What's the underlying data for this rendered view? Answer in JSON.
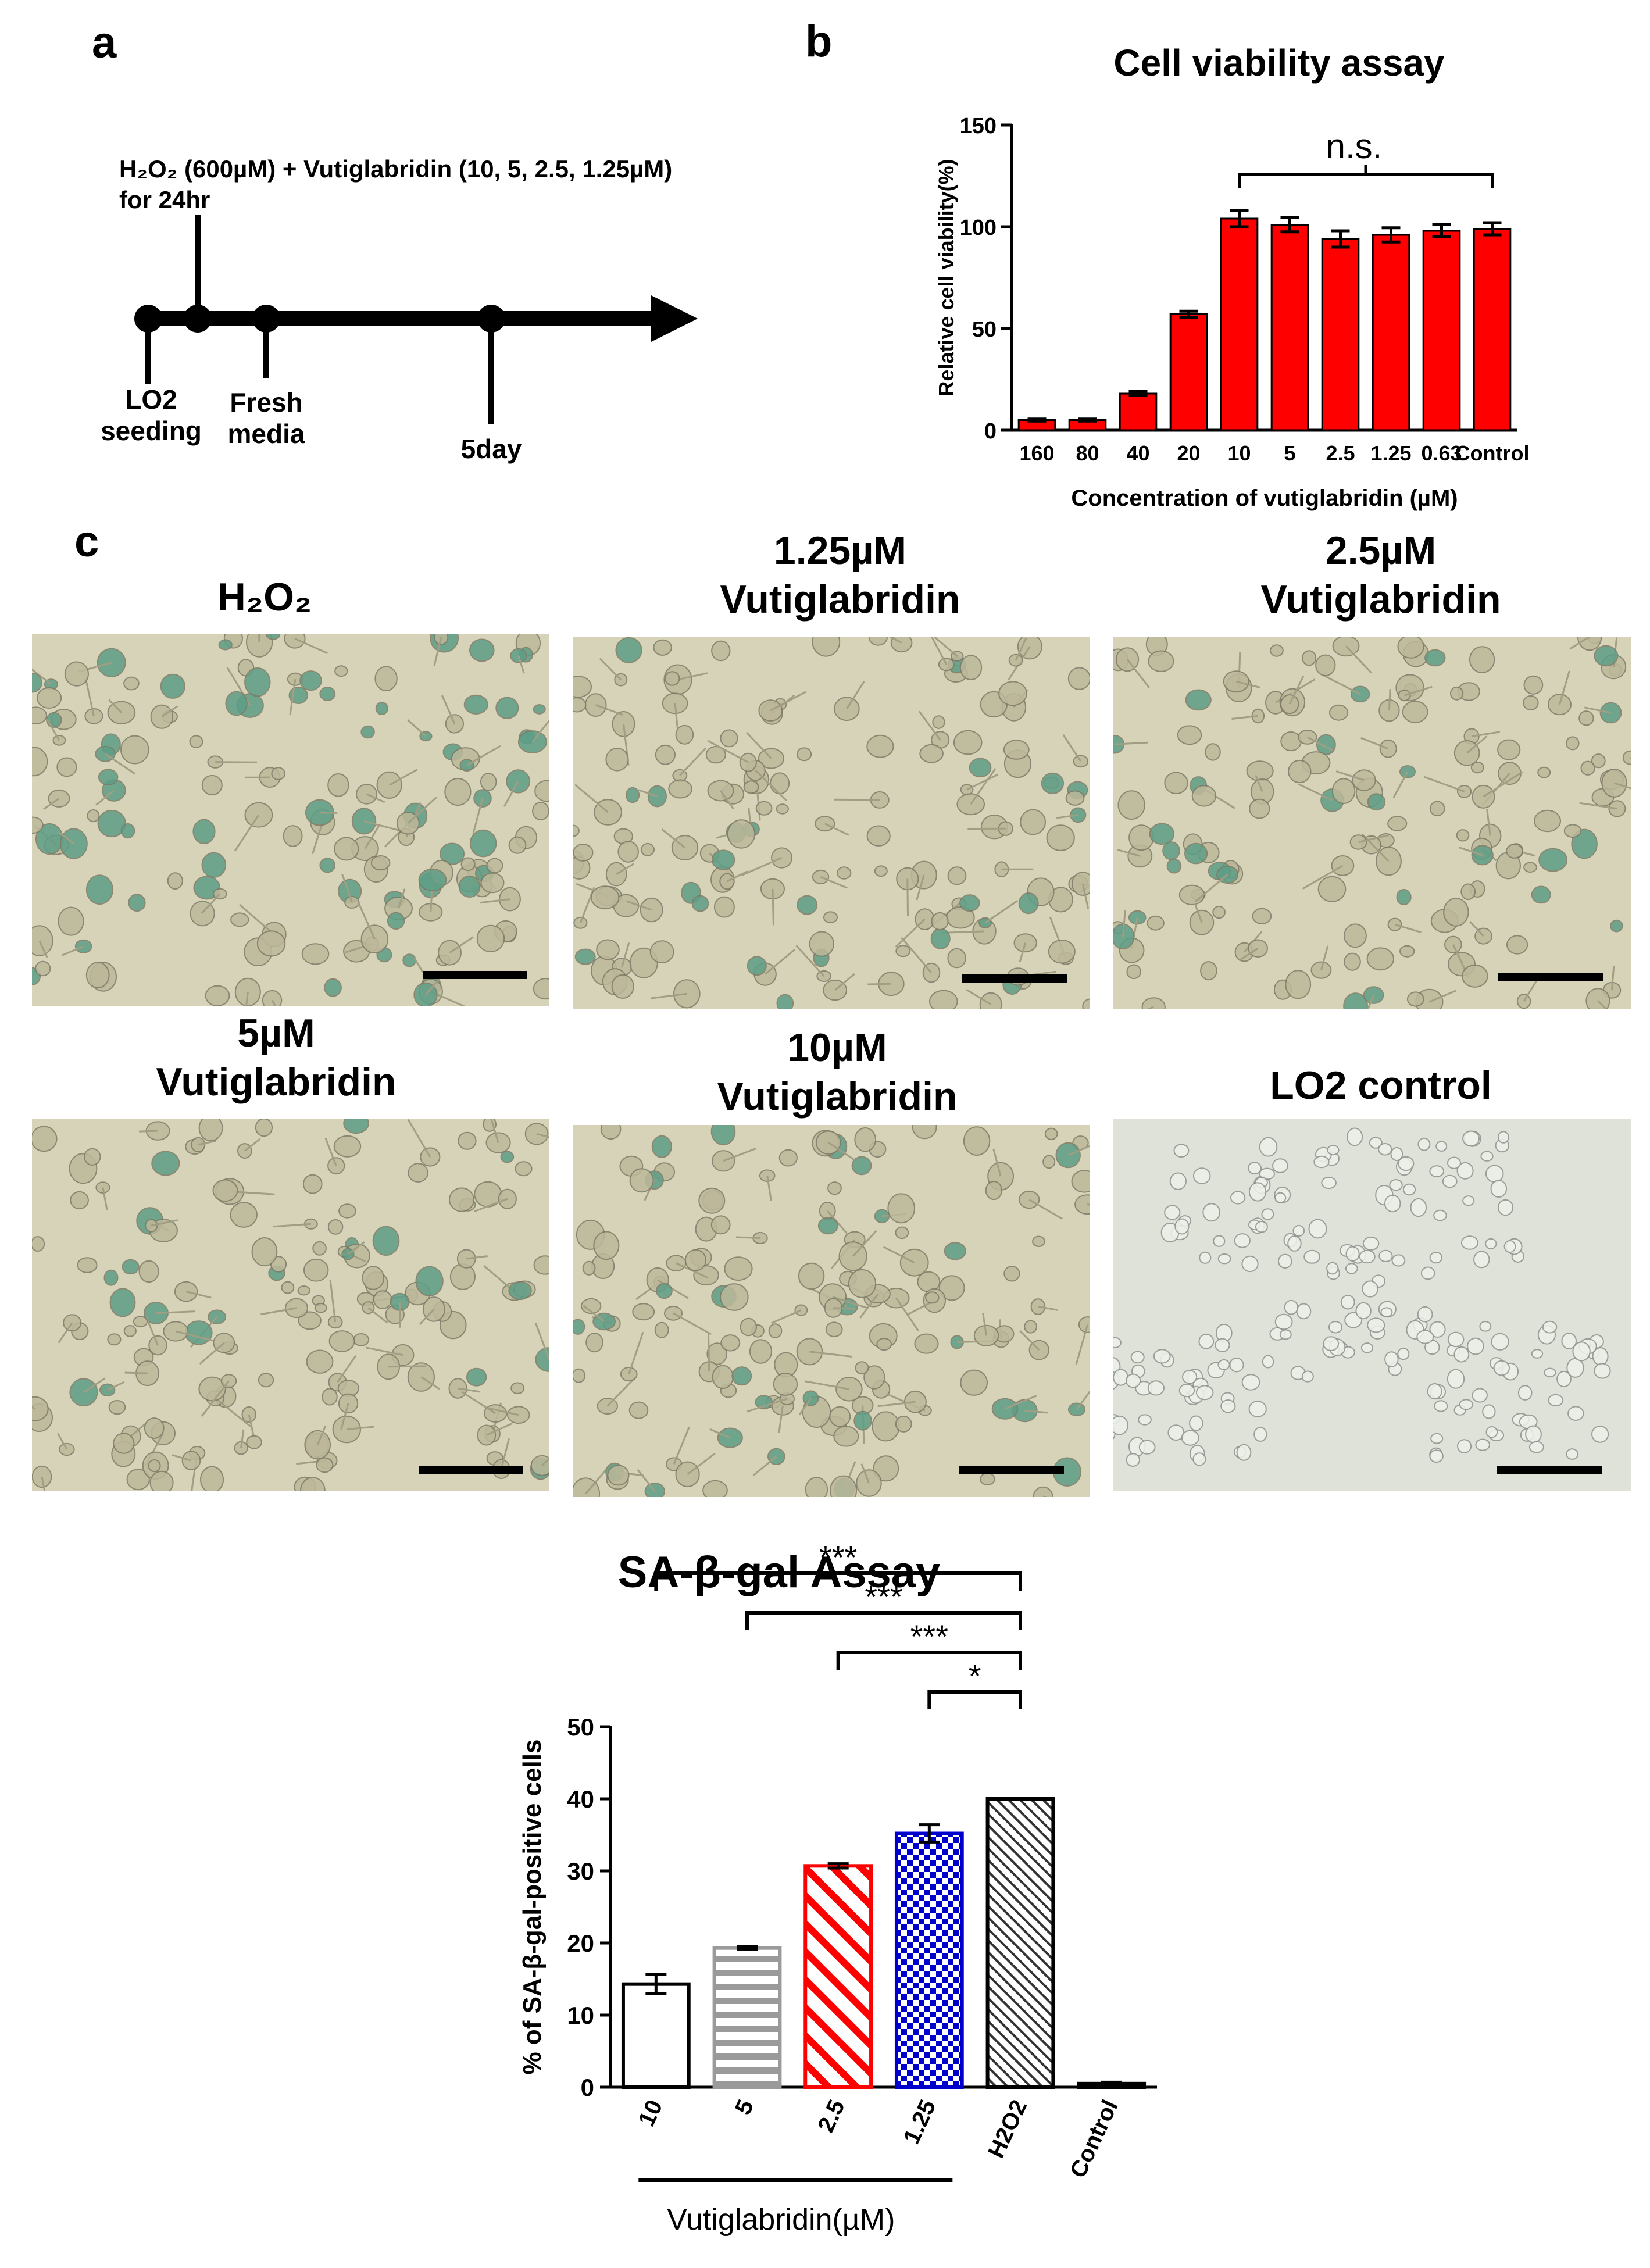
{
  "panels": {
    "a": "a",
    "b": "b",
    "c": "c"
  },
  "timeline": {
    "treatment_line1": "H₂O₂ (600µM) + Vutiglabridin (10, 5, 2.5, 1.25µM)",
    "treatment_line2": "for 24hr",
    "events": [
      {
        "label_line1": "LO2",
        "label_line2": "seeding"
      },
      {
        "label_line1": "Fresh",
        "label_line2": "media"
      },
      {
        "label_line1": "5day",
        "label_line2": ""
      }
    ]
  },
  "colors": {
    "bar_red": "#ff0000",
    "bar_blue": "#0000cc",
    "bar_gray": "#9a9a9a",
    "micro_bg": "#d6d3b8",
    "stain_green": "#5e9e86",
    "control_bg": "#dfe2d9"
  },
  "micrographs": [
    {
      "label_line1": "H₂O₂",
      "label_line2": ""
    },
    {
      "label_line1": "1.25µM",
      "label_line2": "Vutiglabridin"
    },
    {
      "label_line1": "2.5µM",
      "label_line2": "Vutiglabridin"
    },
    {
      "label_line1": "5µM",
      "label_line2": "Vutiglabridin"
    },
    {
      "label_line1": "10µM",
      "label_line2": "Vutiglabridin"
    },
    {
      "label_line1": "LO2 control",
      "label_line2": ""
    }
  ],
  "chart_data": [
    {
      "type": "bar",
      "title": "Cell viability assay",
      "xlabel": "Concentration of vutiglabridin (µM)",
      "ylabel": "Relative cell viability(%)",
      "categories": [
        "160",
        "80",
        "40",
        "20",
        "10",
        "5",
        "2.5",
        "1.25",
        "0.63",
        "Control"
      ],
      "values": [
        5,
        5,
        18,
        57,
        104,
        101,
        94,
        96,
        98,
        99
      ],
      "errors": [
        0.5,
        0.5,
        1,
        1.5,
        4,
        3.5,
        4,
        3.5,
        3,
        3
      ],
      "ylim": [
        0,
        150
      ],
      "yticks": [
        0,
        50,
        100,
        150
      ],
      "color": "#ff0000",
      "annotation": {
        "text": "n.s.",
        "from": "10",
        "to": "Control"
      }
    },
    {
      "type": "bar",
      "title": "SA-β-gal Assay",
      "xlabel": "Vutiglabridin(µM)",
      "ylabel": "% of SA-β-gal-positive cells",
      "categories": [
        "10",
        "5",
        "2.5",
        "1.25",
        "H2O2",
        "Control"
      ],
      "values": [
        14.3,
        19.3,
        30.7,
        35.2,
        40,
        0.5
      ],
      "errors": [
        1.3,
        0.2,
        0.3,
        1.2,
        0,
        0.2
      ],
      "patterns": [
        "white",
        "hlines-gray",
        "diag-red",
        "check-blue",
        "diag-black",
        "solid-black"
      ],
      "ylim": [
        0,
        50
      ],
      "yticks": [
        0,
        10,
        20,
        30,
        40,
        50
      ],
      "significance": [
        {
          "from": "10",
          "to": "H2O2",
          "label": "***"
        },
        {
          "from": "5",
          "to": "H2O2",
          "label": "***"
        },
        {
          "from": "2.5",
          "to": "H2O2",
          "label": "***"
        },
        {
          "from": "1.25",
          "to": "H2O2",
          "label": "*"
        }
      ]
    }
  ]
}
